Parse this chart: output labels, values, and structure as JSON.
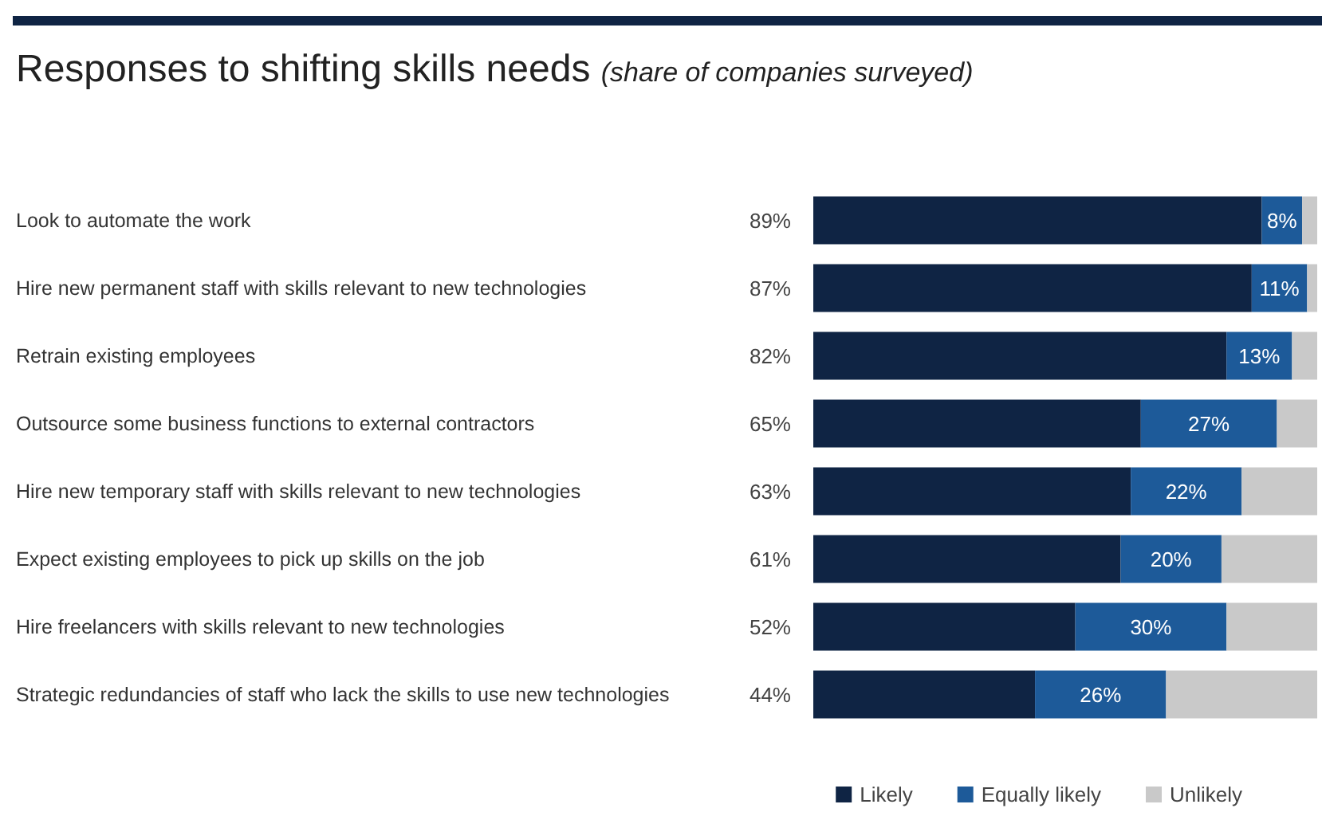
{
  "chart_data": {
    "type": "bar",
    "orientation": "horizontal",
    "stacked": true,
    "title": "Responses to shifting skills needs",
    "subtitle": "(share of companies surveyed)",
    "categories": [
      "Look to automate the work",
      "Hire new permanent staff with skills relevant to new technologies",
      "Retrain existing employees",
      "Outsource some business functions to external contractors",
      "Hire new temporary staff with skills relevant to new technologies",
      "Expect existing employees to pick up skills on the job",
      "Hire freelancers with skills relevant to new technologies",
      "Strategic redundancies of staff who lack the skills to use new technologies"
    ],
    "series": [
      {
        "name": "Likely",
        "color": "#0f2444",
        "values": [
          89,
          87,
          82,
          65,
          63,
          61,
          52,
          44
        ],
        "value_labels": [
          "89%",
          "87%",
          "82%",
          "65%",
          "63%",
          "61%",
          "52%",
          "44%"
        ]
      },
      {
        "name": "Equally likely",
        "color": "#1d5a99",
        "values": [
          8,
          11,
          13,
          27,
          22,
          20,
          30,
          26
        ],
        "value_labels": [
          "8%",
          "11%",
          "13%",
          "27%",
          "22%",
          "20%",
          "30%",
          "26%"
        ]
      },
      {
        "name": "Unlikely",
        "color": "#c9c9c9",
        "values": [
          3,
          2,
          5,
          8,
          15,
          19,
          18,
          30
        ]
      }
    ],
    "legend": "bottom"
  }
}
